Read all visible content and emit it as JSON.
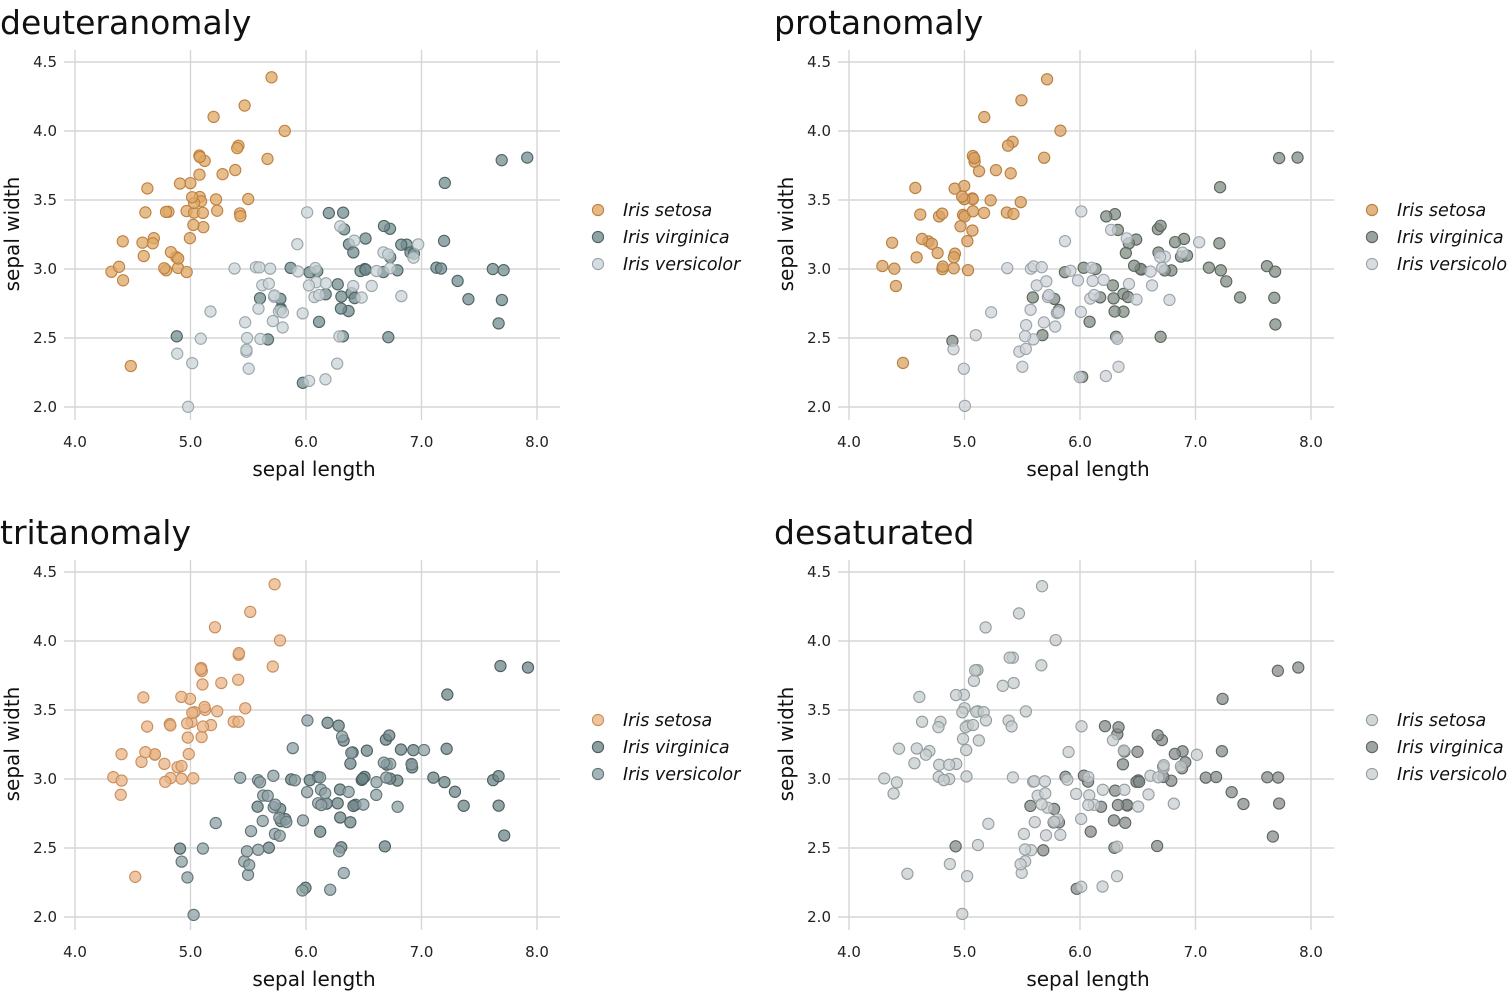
{
  "chart_data": [
    {
      "type": "scatter",
      "title": "deuteranomaly",
      "xlabel": "sepal length",
      "ylabel": "sepal width",
      "xlim": [
        4.0,
        8.2
      ],
      "ylim": [
        1.9,
        4.6
      ],
      "xticks": [
        "4.0",
        "5.0",
        "6.0",
        "7.0",
        "8.0"
      ],
      "yticks": [
        "2.0",
        "2.5",
        "3.0",
        "3.5",
        "4.0",
        "4.5"
      ],
      "grid": true,
      "legend_position": "right",
      "series": [
        {
          "name": "Iris setosa",
          "color": "#DDA866",
          "stroke": "#C08040"
        },
        {
          "name": "Iris virginica",
          "color": "#738C8F",
          "stroke": "#4F6366"
        },
        {
          "name": "Iris versicolor",
          "color": "#C9D4D8",
          "stroke": "#9AA6AA"
        }
      ]
    },
    {
      "type": "scatter",
      "title": "protanomaly",
      "xlabel": "sepal length",
      "ylabel": "sepal width",
      "xlim": [
        4.0,
        8.2
      ],
      "ylim": [
        1.9,
        4.6
      ],
      "xticks": [
        "4.0",
        "5.0",
        "6.0",
        "7.0",
        "8.0"
      ],
      "yticks": [
        "2.0",
        "2.5",
        "3.0",
        "3.5",
        "4.0",
        "4.5"
      ],
      "grid": true,
      "legend_position": "right",
      "series": [
        {
          "name": "Iris setosa",
          "color": "#D9A264",
          "stroke": "#B87F3E"
        },
        {
          "name": "Iris virginica",
          "color": "#818C84",
          "stroke": "#5A645C"
        },
        {
          "name": "Iris versicolor",
          "color": "#CDD3D8",
          "stroke": "#9CA4AA"
        }
      ]
    },
    {
      "type": "scatter",
      "title": "tritanomaly",
      "xlabel": "sepal length",
      "ylabel": "sepal width",
      "xlim": [
        4.0,
        8.2
      ],
      "ylim": [
        1.9,
        4.6
      ],
      "xticks": [
        "4.0",
        "5.0",
        "6.0",
        "7.0",
        "8.0"
      ],
      "yticks": [
        "2.0",
        "2.5",
        "3.0",
        "3.5",
        "4.0",
        "4.5"
      ],
      "grid": true,
      "legend_position": "right",
      "series": [
        {
          "name": "Iris setosa",
          "color": "#EAB487",
          "stroke": "#C98E5C"
        },
        {
          "name": "Iris virginica",
          "color": "#6F8688",
          "stroke": "#4B5E60"
        },
        {
          "name": "Iris versicolor",
          "color": "#8FA2A5",
          "stroke": "#627477"
        }
      ]
    },
    {
      "type": "scatter",
      "title": "desaturated",
      "xlabel": "sepal length",
      "ylabel": "sepal width",
      "xlim": [
        4.0,
        8.2
      ],
      "ylim": [
        1.9,
        4.6
      ],
      "xticks": [
        "4.0",
        "5.0",
        "6.0",
        "7.0",
        "8.0"
      ],
      "yticks": [
        "2.0",
        "2.5",
        "3.0",
        "3.5",
        "4.0",
        "4.5"
      ],
      "grid": true,
      "legend_position": "right",
      "series": [
        {
          "name": "Iris setosa",
          "color": "#C6CCCE",
          "stroke": "#959C9E"
        },
        {
          "name": "Iris virginica",
          "color": "#878E8C",
          "stroke": "#5E6563"
        },
        {
          "name": "Iris versicolor",
          "color": "#CACFD1",
          "stroke": "#989FA1"
        }
      ]
    }
  ],
  "iris_points": {
    "setosa": [
      [
        5.1,
        3.5
      ],
      [
        4.9,
        3.0
      ],
      [
        4.7,
        3.2
      ],
      [
        4.6,
        3.1
      ],
      [
        5.0,
        3.6
      ],
      [
        5.4,
        3.9
      ],
      [
        4.6,
        3.4
      ],
      [
        5.0,
        3.4
      ],
      [
        4.4,
        2.9
      ],
      [
        4.9,
        3.1
      ],
      [
        5.4,
        3.7
      ],
      [
        4.8,
        3.4
      ],
      [
        4.8,
        3.0
      ],
      [
        4.3,
        3.0
      ],
      [
        5.8,
        4.0
      ],
      [
        5.7,
        4.4
      ],
      [
        5.4,
        3.9
      ],
      [
        5.1,
        3.5
      ],
      [
        5.7,
        3.8
      ],
      [
        5.1,
        3.8
      ],
      [
        5.4,
        3.4
      ],
      [
        5.1,
        3.7
      ],
      [
        4.6,
        3.6
      ],
      [
        5.1,
        3.3
      ],
      [
        4.8,
        3.4
      ],
      [
        5.0,
        3.0
      ],
      [
        5.0,
        3.4
      ],
      [
        5.2,
        3.5
      ],
      [
        5.2,
        3.4
      ],
      [
        4.7,
        3.2
      ],
      [
        4.8,
        3.1
      ],
      [
        5.4,
        3.4
      ],
      [
        5.2,
        4.1
      ],
      [
        5.5,
        4.2
      ],
      [
        4.9,
        3.1
      ],
      [
        5.0,
        3.2
      ],
      [
        5.5,
        3.5
      ],
      [
        4.9,
        3.6
      ],
      [
        4.4,
        3.0
      ],
      [
        5.1,
        3.4
      ],
      [
        5.0,
        3.5
      ],
      [
        4.5,
        2.3
      ],
      [
        4.4,
        3.2
      ],
      [
        5.0,
        3.5
      ],
      [
        5.1,
        3.8
      ],
      [
        4.8,
        3.0
      ],
      [
        5.1,
        3.8
      ],
      [
        4.6,
        3.2
      ],
      [
        5.3,
        3.7
      ],
      [
        5.0,
        3.3
      ]
    ],
    "versicolor": [
      [
        7.0,
        3.2
      ],
      [
        6.4,
        3.2
      ],
      [
        6.9,
        3.1
      ],
      [
        5.5,
        2.3
      ],
      [
        6.5,
        2.8
      ],
      [
        5.7,
        2.8
      ],
      [
        6.3,
        3.3
      ],
      [
        4.9,
        2.4
      ],
      [
        6.6,
        2.9
      ],
      [
        5.2,
        2.7
      ],
      [
        5.0,
        2.0
      ],
      [
        5.9,
        3.0
      ],
      [
        6.0,
        2.2
      ],
      [
        6.1,
        2.9
      ],
      [
        5.6,
        2.9
      ],
      [
        6.7,
        3.1
      ],
      [
        5.6,
        3.0
      ],
      [
        5.8,
        2.7
      ],
      [
        6.2,
        2.2
      ],
      [
        5.6,
        2.5
      ],
      [
        5.9,
        3.2
      ],
      [
        6.1,
        2.8
      ],
      [
        6.3,
        2.5
      ],
      [
        6.1,
        2.8
      ],
      [
        6.4,
        2.9
      ],
      [
        6.6,
        3.0
      ],
      [
        6.8,
        2.8
      ],
      [
        6.7,
        3.0
      ],
      [
        6.0,
        2.9
      ],
      [
        5.7,
        2.6
      ],
      [
        5.5,
        2.4
      ],
      [
        5.5,
        2.4
      ],
      [
        5.8,
        2.7
      ],
      [
        6.0,
        2.7
      ],
      [
        5.4,
        3.0
      ],
      [
        6.0,
        3.4
      ],
      [
        6.7,
        3.1
      ],
      [
        6.3,
        2.3
      ],
      [
        5.6,
        3.0
      ],
      [
        5.5,
        2.5
      ],
      [
        5.5,
        2.6
      ],
      [
        6.1,
        3.0
      ],
      [
        5.8,
        2.6
      ],
      [
        5.0,
        2.3
      ],
      [
        5.6,
        2.7
      ],
      [
        5.7,
        3.0
      ],
      [
        5.7,
        2.9
      ],
      [
        6.2,
        2.9
      ],
      [
        5.1,
        2.5
      ],
      [
        5.7,
        2.8
      ]
    ],
    "virginica": [
      [
        6.3,
        3.3
      ],
      [
        5.8,
        2.7
      ],
      [
        7.1,
        3.0
      ],
      [
        6.3,
        2.9
      ],
      [
        6.5,
        3.0
      ],
      [
        7.6,
        3.0
      ],
      [
        4.9,
        2.5
      ],
      [
        7.3,
        2.9
      ],
      [
        6.7,
        2.5
      ],
      [
        7.2,
        3.6
      ],
      [
        6.5,
        3.2
      ],
      [
        6.4,
        2.7
      ],
      [
        6.8,
        3.0
      ],
      [
        5.7,
        2.5
      ],
      [
        5.8,
        2.8
      ],
      [
        6.4,
        3.2
      ],
      [
        6.5,
        3.0
      ],
      [
        7.7,
        3.8
      ],
      [
        7.7,
        2.6
      ],
      [
        6.0,
        2.2
      ],
      [
        6.9,
        3.2
      ],
      [
        5.6,
        2.8
      ],
      [
        7.7,
        2.8
      ],
      [
        6.3,
        2.7
      ],
      [
        6.7,
        3.3
      ],
      [
        7.2,
        3.2
      ],
      [
        6.2,
        2.8
      ],
      [
        6.1,
        3.0
      ],
      [
        6.4,
        2.8
      ],
      [
        7.2,
        3.0
      ],
      [
        7.4,
        2.8
      ],
      [
        7.9,
        3.8
      ],
      [
        6.4,
        2.8
      ],
      [
        6.3,
        2.8
      ],
      [
        6.1,
        2.6
      ],
      [
        7.7,
        3.0
      ],
      [
        6.3,
        3.4
      ],
      [
        6.4,
        3.1
      ],
      [
        6.0,
        3.0
      ],
      [
        6.9,
        3.1
      ],
      [
        6.7,
        3.1
      ],
      [
        6.9,
        3.1
      ],
      [
        5.8,
        2.7
      ],
      [
        6.8,
        3.2
      ],
      [
        6.7,
        3.3
      ],
      [
        6.7,
        3.0
      ],
      [
        6.3,
        2.5
      ],
      [
        6.5,
        3.0
      ],
      [
        6.2,
        3.4
      ],
      [
        5.9,
        3.0
      ]
    ]
  },
  "species_order": [
    "setosa",
    "virginica",
    "versicolor"
  ]
}
